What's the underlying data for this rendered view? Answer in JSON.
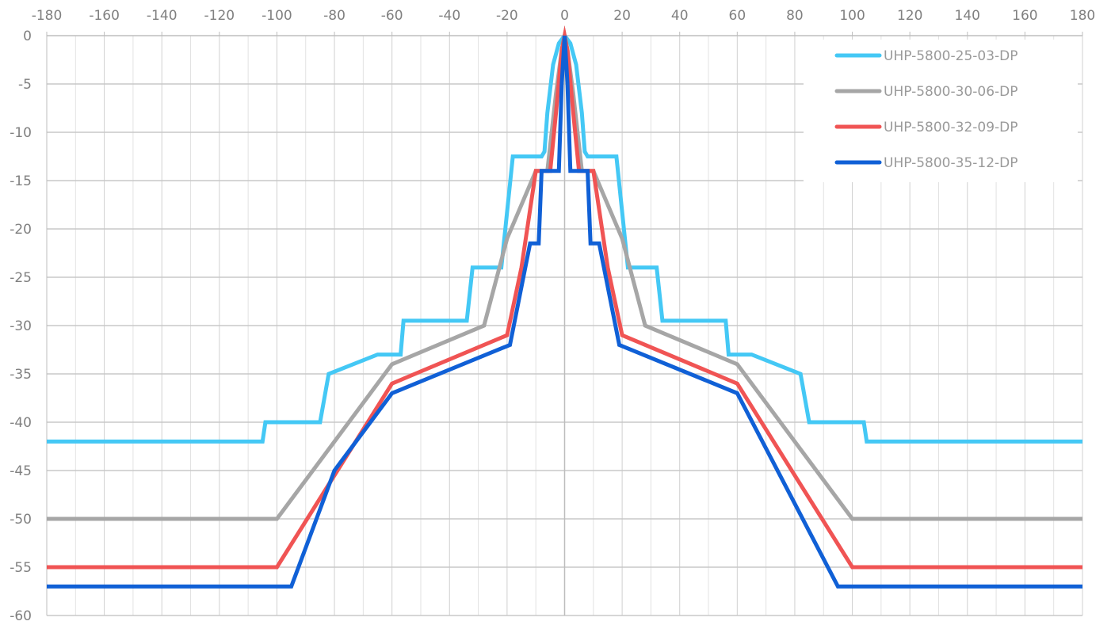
{
  "chart_data": {
    "type": "line",
    "title": "",
    "xlabel": "",
    "ylabel": "",
    "xlim": [
      -180,
      180
    ],
    "ylim": [
      -60,
      0
    ],
    "x_ticks": [
      -180,
      -160,
      -140,
      -120,
      -100,
      -80,
      -60,
      -40,
      -20,
      0,
      20,
      40,
      60,
      80,
      100,
      120,
      140,
      160,
      180
    ],
    "y_ticks": [
      0,
      -5,
      -10,
      -15,
      -20,
      -25,
      -30,
      -35,
      -40,
      -45,
      -50,
      -55,
      -60
    ],
    "x_tick_labels": [
      "-180",
      "-160",
      "-140",
      "-120",
      "-100",
      "-80",
      "-60",
      "-40",
      "-20",
      "0",
      "20",
      "40",
      "60",
      "80",
      "100",
      "120",
      "140",
      "160",
      "180"
    ],
    "y_tick_labels": [
      "0",
      "-5",
      "-10",
      "-15",
      "-20",
      "-25",
      "-30",
      "-35",
      "-40",
      "-45",
      "-50",
      "-55",
      "-60"
    ],
    "x_axis_position": "top",
    "grid": true,
    "legend_position": "top-right",
    "series": [
      {
        "name": "UHP-5800-25-03-DP",
        "color": "#44c8f5",
        "points": [
          [
            -180,
            -42
          ],
          [
            -105,
            -42
          ],
          [
            -104,
            -40
          ],
          [
            -85,
            -40
          ],
          [
            -82,
            -35
          ],
          [
            -65,
            -33
          ],
          [
            -57,
            -33
          ],
          [
            -56,
            -29.5
          ],
          [
            -34,
            -29.5
          ],
          [
            -32,
            -24
          ],
          [
            -22,
            -24
          ],
          [
            -18,
            -12.5
          ],
          [
            -8,
            -12.5
          ],
          [
            -7,
            -12
          ],
          [
            -6,
            -8
          ],
          [
            -4,
            -3
          ],
          [
            -2,
            -0.8
          ],
          [
            0,
            0
          ],
          [
            2,
            -0.8
          ],
          [
            4,
            -3
          ],
          [
            6,
            -8
          ],
          [
            7,
            -12
          ],
          [
            8,
            -12.5
          ],
          [
            18,
            -12.5
          ],
          [
            22,
            -24
          ],
          [
            32,
            -24
          ],
          [
            34,
            -29.5
          ],
          [
            56,
            -29.5
          ],
          [
            57,
            -33
          ],
          [
            65,
            -33
          ],
          [
            82,
            -35
          ],
          [
            85,
            -40
          ],
          [
            104,
            -40
          ],
          [
            105,
            -42
          ],
          [
            180,
            -42
          ]
        ]
      },
      {
        "name": "UHP-5800-30-06-DP",
        "color": "#a6a6a6",
        "points": [
          [
            -180,
            -50
          ],
          [
            -100,
            -50
          ],
          [
            -60,
            -34
          ],
          [
            -28,
            -30
          ],
          [
            -20,
            -21
          ],
          [
            -10,
            -14
          ],
          [
            -6,
            -14
          ],
          [
            -3,
            -6
          ],
          [
            -1,
            -1.5
          ],
          [
            0,
            0
          ],
          [
            1,
            -1.5
          ],
          [
            3,
            -6
          ],
          [
            6,
            -14
          ],
          [
            10,
            -14
          ],
          [
            20,
            -21
          ],
          [
            28,
            -30
          ],
          [
            60,
            -34
          ],
          [
            100,
            -50
          ],
          [
            180,
            -50
          ]
        ]
      },
      {
        "name": "UHP-5800-32-09-DP",
        "color": "#f05454",
        "points": [
          [
            -180,
            -55
          ],
          [
            -100,
            -55
          ],
          [
            -60,
            -36
          ],
          [
            -20,
            -31
          ],
          [
            -15,
            -24
          ],
          [
            -10,
            -14
          ],
          [
            -5,
            -14
          ],
          [
            -3,
            -8
          ],
          [
            -1,
            -1.5
          ],
          [
            0,
            0
          ],
          [
            1,
            -1.5
          ],
          [
            3,
            -8
          ],
          [
            5,
            -14
          ],
          [
            10,
            -14
          ],
          [
            15,
            -24
          ],
          [
            20,
            -31
          ],
          [
            60,
            -36
          ],
          [
            100,
            -55
          ],
          [
            180,
            -55
          ]
        ]
      },
      {
        "name": "UHP-5800-35-12-DP",
        "color": "#1060d6",
        "points": [
          [
            -180,
            -57
          ],
          [
            -95,
            -57
          ],
          [
            -80,
            -45
          ],
          [
            -60,
            -37
          ],
          [
            -19,
            -32
          ],
          [
            -12,
            -21.5
          ],
          [
            -9,
            -21.5
          ],
          [
            -8,
            -14
          ],
          [
            -2,
            -14
          ],
          [
            -1,
            -5
          ],
          [
            0,
            0
          ],
          [
            1,
            -5
          ],
          [
            2,
            -14
          ],
          [
            8,
            -14
          ],
          [
            9,
            -21.5
          ],
          [
            12,
            -21.5
          ],
          [
            19,
            -32
          ],
          [
            60,
            -37
          ],
          [
            95,
            -57
          ],
          [
            180,
            -57
          ]
        ]
      }
    ]
  }
}
